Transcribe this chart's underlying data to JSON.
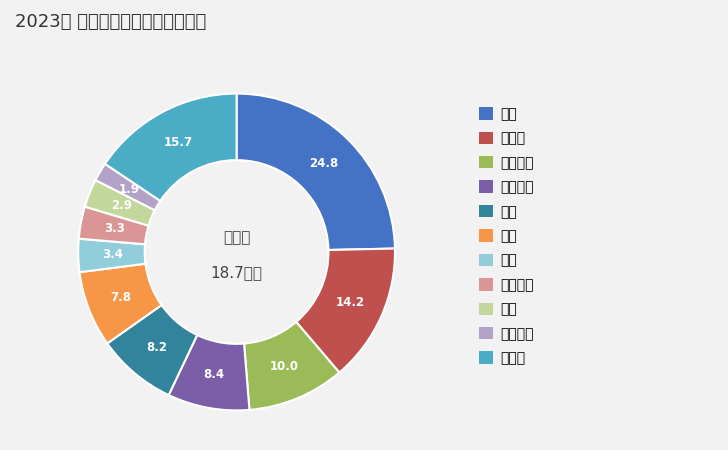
{
  "title": "2023年 輸出相手国のシェア（％）",
  "center_label_line1": "総　額",
  "center_label_line2": "18.7億円",
  "labels": [
    "米国",
    "ドイツ",
    "オランダ",
    "フランス",
    "英国",
    "中国",
    "豪州",
    "イタリア",
    "韓国",
    "スペイン",
    "その他"
  ],
  "values": [
    24.8,
    14.2,
    10.0,
    8.4,
    8.2,
    7.8,
    3.4,
    3.3,
    2.9,
    1.9,
    15.7
  ],
  "colors": [
    "#4472C4",
    "#C0504D",
    "#9BBB59",
    "#7B5EA7",
    "#31849B",
    "#F79646",
    "#92CDDC",
    "#DA9694",
    "#C3D69B",
    "#B3A2C7",
    "#4BACC6"
  ],
  "background_color": "#F2F2F2",
  "title_fontsize": 13,
  "legend_fontsize": 10,
  "label_fontsize": 8.5
}
